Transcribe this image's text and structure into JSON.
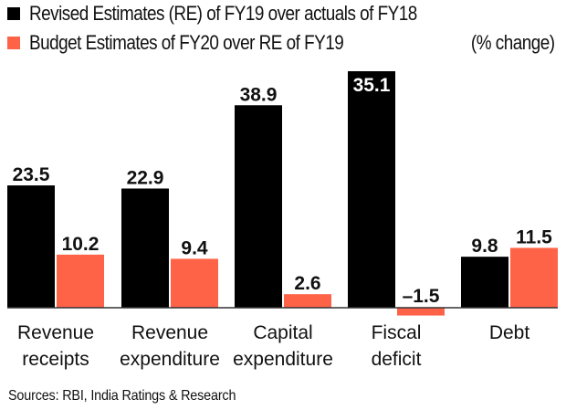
{
  "colors": {
    "re_fy19": "#000000",
    "be_fy20": "#FF6347",
    "axis": "#333333",
    "inside_label": "#ffffff"
  },
  "legend": {
    "items": [
      {
        "label": "Revised Estimates (RE) of FY19 over actuals of FY18",
        "icon": "black-square-swatch"
      },
      {
        "label": "Budget Estimates of FY20 over RE of FY19",
        "icon": "orange-square-swatch"
      }
    ],
    "unit_label": "(% change)"
  },
  "source": "Sources: RBI, India Ratings & Research",
  "chart_data": {
    "type": "bar",
    "title": "",
    "xlabel": "",
    "ylabel": "% change",
    "unit": "% change",
    "categories": [
      [
        "Revenue",
        "receipts"
      ],
      [
        "Revenue",
        "expenditure"
      ],
      [
        "Capital",
        "expenditure"
      ],
      [
        "Fiscal",
        "deficit"
      ],
      [
        "Debt"
      ]
    ],
    "series": [
      {
        "name": "Revised Estimates (RE) of FY19 over actuals of FY18",
        "values": [
          23.5,
          22.9,
          38.9,
          35.1,
          9.8
        ],
        "labels": [
          "23.5",
          "22.9",
          "38.9",
          "35.1",
          "9.8"
        ]
      },
      {
        "name": "Budget Estimates of FY20 over RE of FY19",
        "values": [
          10.2,
          9.4,
          2.6,
          -1.5,
          11.5
        ],
        "labels": [
          "10.2",
          "9.4",
          "2.6",
          "–1.5",
          "11.5"
        ]
      }
    ],
    "grid": false,
    "legend_position": "top-left",
    "y_axis_visible": false,
    "data_labels": true
  }
}
